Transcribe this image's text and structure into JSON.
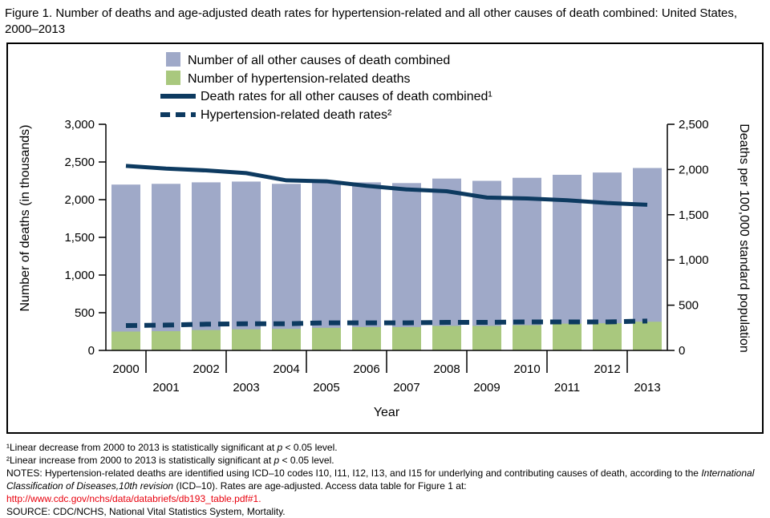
{
  "title": "Figure 1. Number of deaths and age-adjusted death rates for hypertension-related and all other causes of death combined: United States, 2000–2013",
  "chart_data": {
    "type": "combo (bar + line)",
    "categories": [
      2000,
      2001,
      2002,
      2003,
      2004,
      2005,
      2006,
      2007,
      2008,
      2009,
      2010,
      2011,
      2012,
      2013
    ],
    "series": [
      {
        "name": "Number of all other causes of death combined",
        "type": "bar",
        "axis": "left",
        "values": [
          2200,
          2210,
          2230,
          2240,
          2210,
          2250,
          2230,
          2220,
          2280,
          2250,
          2290,
          2330,
          2360,
          2420
        ]
      },
      {
        "name": "Number of hypertension-related deaths",
        "type": "bar",
        "axis": "left",
        "values": [
          250,
          255,
          270,
          280,
          285,
          300,
          310,
          310,
          325,
          325,
          335,
          355,
          360,
          380
        ]
      },
      {
        "name": "Death rates for all other causes of death combined¹",
        "type": "line",
        "style": "solid",
        "axis": "right",
        "values": [
          2040,
          2010,
          1990,
          1960,
          1880,
          1870,
          1820,
          1780,
          1760,
          1690,
          1680,
          1660,
          1630,
          1610
        ]
      },
      {
        "name": "Hypertension-related death rates²",
        "type": "line",
        "style": "dashed",
        "axis": "right",
        "values": [
          275,
          280,
          290,
          295,
          295,
          305,
          305,
          305,
          310,
          310,
          315,
          315,
          315,
          325
        ]
      }
    ],
    "left_axis": {
      "label": "Number of deaths (in thousands)",
      "min": 0,
      "max": 3000,
      "step": 500,
      "tick_labels": [
        "0",
        "500",
        "1,000",
        "1,500",
        "2,000",
        "2,500",
        "3,000"
      ]
    },
    "right_axis": {
      "label": "Deaths per 100,000 standard population",
      "min": 0,
      "max": 2500,
      "step": 500,
      "tick_labels": [
        "0",
        "500",
        "1,000",
        "1,500",
        "2,000",
        "2,500"
      ]
    },
    "x_axis": {
      "label": "Year"
    },
    "legend_position": "top-center-inside",
    "grid": false,
    "colors": {
      "bar_other": "#9fa9c8",
      "bar_hypertension": "#a9c87e",
      "line": "#0d3a60",
      "link_red": "#e8000d"
    }
  },
  "footnotes": {
    "fn1_pre": "¹Linear decrease from 2000 to 2013 is statistically significant at ",
    "fn1_italic": "p",
    "fn1_post": " < 0.05 level.",
    "fn2_pre": "²Linear increase from 2000 to 2013 is statistically significant at ",
    "fn2_italic": "p",
    "fn2_post": " < 0.05 level.",
    "notes_pre": "NOTES: Hypertension-related deaths are identified using ICD–10 codes I10, I11, I12, I13, and I15 for underlying and contributing causes of death, according to the ",
    "notes_italic": "International Classification of Diseases,10th revision",
    "notes_post": " (ICD–10). Rates are age-adjusted. Access data table for Figure 1 at:",
    "link": "http://www.cdc.gov/nchs/data/databriefs/db193_table.pdf#1.",
    "source": "SOURCE: CDC/NCHS, National Vital Statistics System, Mortality."
  }
}
